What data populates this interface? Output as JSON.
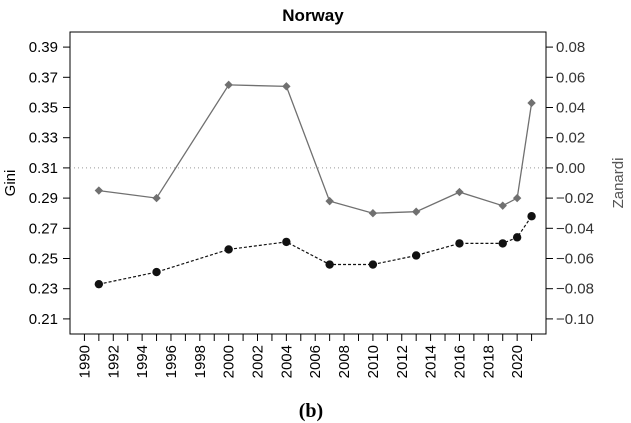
{
  "chart_data": {
    "type": "line",
    "title": "Norway",
    "caption": "(b)",
    "xlabel": "",
    "ylabel_left": "Gini",
    "ylabel_right": "Zanardi",
    "x_ticks": [
      "1990",
      "1992",
      "1994",
      "1996",
      "1998",
      "2000",
      "2002",
      "2004",
      "2006",
      "2008",
      "2010",
      "2012",
      "2014",
      "2016",
      "2018",
      "2020"
    ],
    "xlim": [
      1989,
      2022
    ],
    "ylim_left": [
      0.2,
      0.4
    ],
    "yticks_left": [
      "0.21",
      "0.23",
      "0.25",
      "0.27",
      "0.29",
      "0.31",
      "0.33",
      "0.35",
      "0.37",
      "0.39"
    ],
    "ylim_right": [
      -0.11,
      0.09
    ],
    "yticks_right": [
      "−0.10",
      "−0.08",
      "−0.06",
      "−0.04",
      "−0.02",
      "0.00",
      "0.02",
      "0.04",
      "0.06",
      "0.08"
    ],
    "reference_line": {
      "axis": "right",
      "value": 0.0,
      "style": "dotted"
    },
    "grid": false,
    "series": [
      {
        "axis": "left",
        "marker": "circle",
        "line": "dashed",
        "color": "#111111",
        "x": [
          1991,
          1995,
          2000,
          2004,
          2007,
          2010,
          2013,
          2016,
          2019,
          2020,
          2021
        ],
        "values": [
          0.233,
          0.241,
          0.256,
          0.261,
          0.246,
          0.246,
          0.252,
          0.26,
          0.26,
          0.264,
          0.278
        ]
      },
      {
        "axis": "right",
        "marker": "diamond",
        "line": "solid",
        "color": "#707070",
        "x": [
          1991,
          1995,
          2000,
          2004,
          2007,
          2010,
          2013,
          2016,
          2019,
          2020,
          2021
        ],
        "values": [
          -0.015,
          -0.02,
          0.055,
          0.054,
          -0.022,
          -0.03,
          -0.029,
          -0.016,
          -0.025,
          -0.02,
          0.043
        ]
      }
    ]
  }
}
